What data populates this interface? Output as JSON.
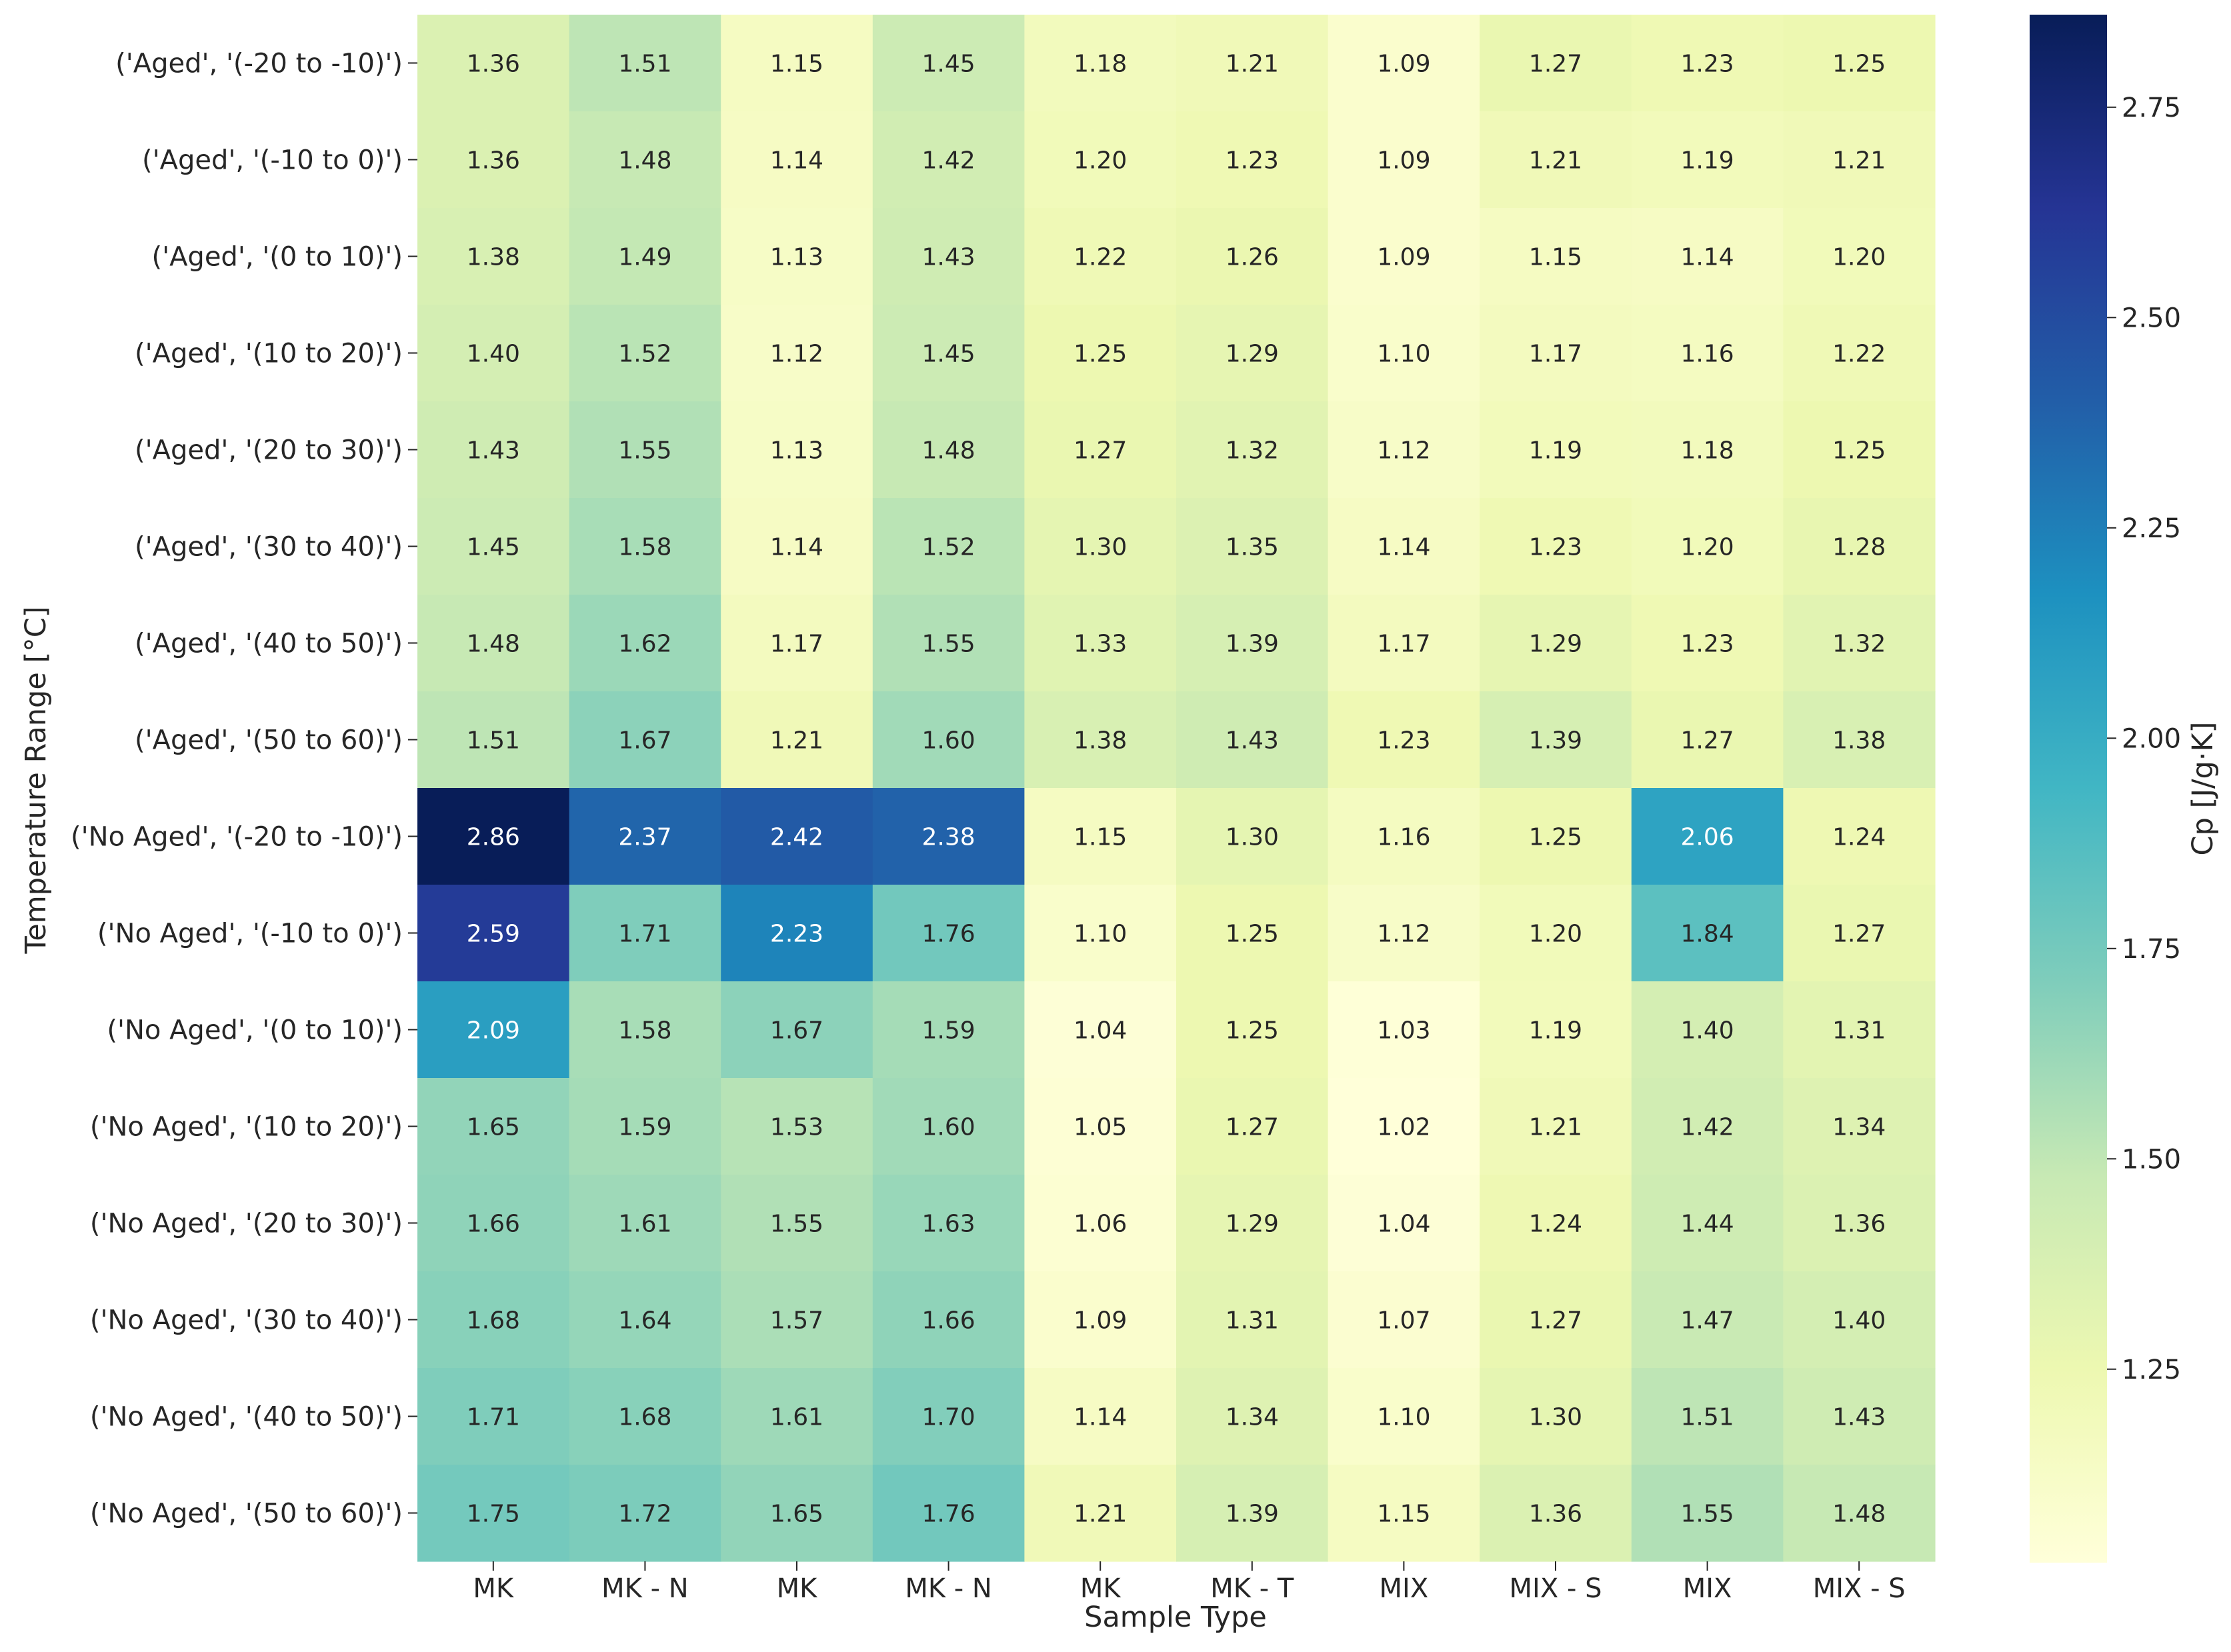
{
  "chart_data": {
    "type": "heatmap",
    "xlabel": "Sample Type",
    "ylabel": "Temperature Range [°C]",
    "colorbar": {
      "label": "Cp [J/g·K]",
      "vmin": 1.02,
      "vmax": 2.86,
      "ticks": [
        1.25,
        1.5,
        1.75,
        2.0,
        2.25,
        2.5,
        2.75
      ],
      "tick_labels": [
        "1.25",
        "1.50",
        "1.75",
        "2.00",
        "2.25",
        "2.50",
        "2.75"
      ],
      "colormap": "YlGnBu",
      "colors": [
        "#ffffd9",
        "#edf8b1",
        "#c7e9b4",
        "#7fcdbb",
        "#41b6c4",
        "#1d91c0",
        "#225ea8",
        "#253494",
        "#081d58"
      ]
    },
    "categories": [
      "MK",
      "MK - N",
      "MK",
      "MK - N",
      "MK",
      "MK - T",
      "MIX",
      "MIX - S",
      "MIX",
      "MIX - S"
    ],
    "rows": [
      "('Aged', '(-20 to -10)')",
      "('Aged', '(-10 to 0)')",
      "('Aged', '(0 to 10)')",
      "('Aged', '(10 to 20)')",
      "('Aged', '(20 to 30)')",
      "('Aged', '(30 to 40)')",
      "('Aged', '(40 to 50)')",
      "('Aged', '(50 to 60)')",
      "('No Aged', '(-20 to -10)')",
      "('No Aged', '(-10 to 0)')",
      "('No Aged', '(0 to 10)')",
      "('No Aged', '(10 to 20)')",
      "('No Aged', '(20 to 30)')",
      "('No Aged', '(30 to 40)')",
      "('No Aged', '(40 to 50)')",
      "('No Aged', '(50 to 60)')"
    ],
    "values": [
      [
        1.36,
        1.51,
        1.15,
        1.45,
        1.18,
        1.21,
        1.09,
        1.27,
        1.23,
        1.25
      ],
      [
        1.36,
        1.48,
        1.14,
        1.42,
        1.2,
        1.23,
        1.09,
        1.21,
        1.19,
        1.21
      ],
      [
        1.38,
        1.49,
        1.13,
        1.43,
        1.22,
        1.26,
        1.09,
        1.15,
        1.14,
        1.2
      ],
      [
        1.4,
        1.52,
        1.12,
        1.45,
        1.25,
        1.29,
        1.1,
        1.17,
        1.16,
        1.22
      ],
      [
        1.43,
        1.55,
        1.13,
        1.48,
        1.27,
        1.32,
        1.12,
        1.19,
        1.18,
        1.25
      ],
      [
        1.45,
        1.58,
        1.14,
        1.52,
        1.3,
        1.35,
        1.14,
        1.23,
        1.2,
        1.28
      ],
      [
        1.48,
        1.62,
        1.17,
        1.55,
        1.33,
        1.39,
        1.17,
        1.29,
        1.23,
        1.32
      ],
      [
        1.51,
        1.67,
        1.21,
        1.6,
        1.38,
        1.43,
        1.23,
        1.39,
        1.27,
        1.38
      ],
      [
        2.86,
        2.37,
        2.42,
        2.38,
        1.15,
        1.3,
        1.16,
        1.25,
        2.06,
        1.24
      ],
      [
        2.59,
        1.71,
        2.23,
        1.76,
        1.1,
        1.25,
        1.12,
        1.2,
        1.84,
        1.27
      ],
      [
        2.09,
        1.58,
        1.67,
        1.59,
        1.04,
        1.25,
        1.03,
        1.19,
        1.4,
        1.31
      ],
      [
        1.65,
        1.59,
        1.53,
        1.6,
        1.05,
        1.27,
        1.02,
        1.21,
        1.42,
        1.34
      ],
      [
        1.66,
        1.61,
        1.55,
        1.63,
        1.06,
        1.29,
        1.04,
        1.24,
        1.44,
        1.36
      ],
      [
        1.68,
        1.64,
        1.57,
        1.66,
        1.09,
        1.31,
        1.07,
        1.27,
        1.47,
        1.4
      ],
      [
        1.71,
        1.68,
        1.61,
        1.7,
        1.14,
        1.34,
        1.1,
        1.3,
        1.51,
        1.43
      ],
      [
        1.75,
        1.72,
        1.65,
        1.76,
        1.21,
        1.39,
        1.15,
        1.36,
        1.55,
        1.48
      ]
    ]
  }
}
